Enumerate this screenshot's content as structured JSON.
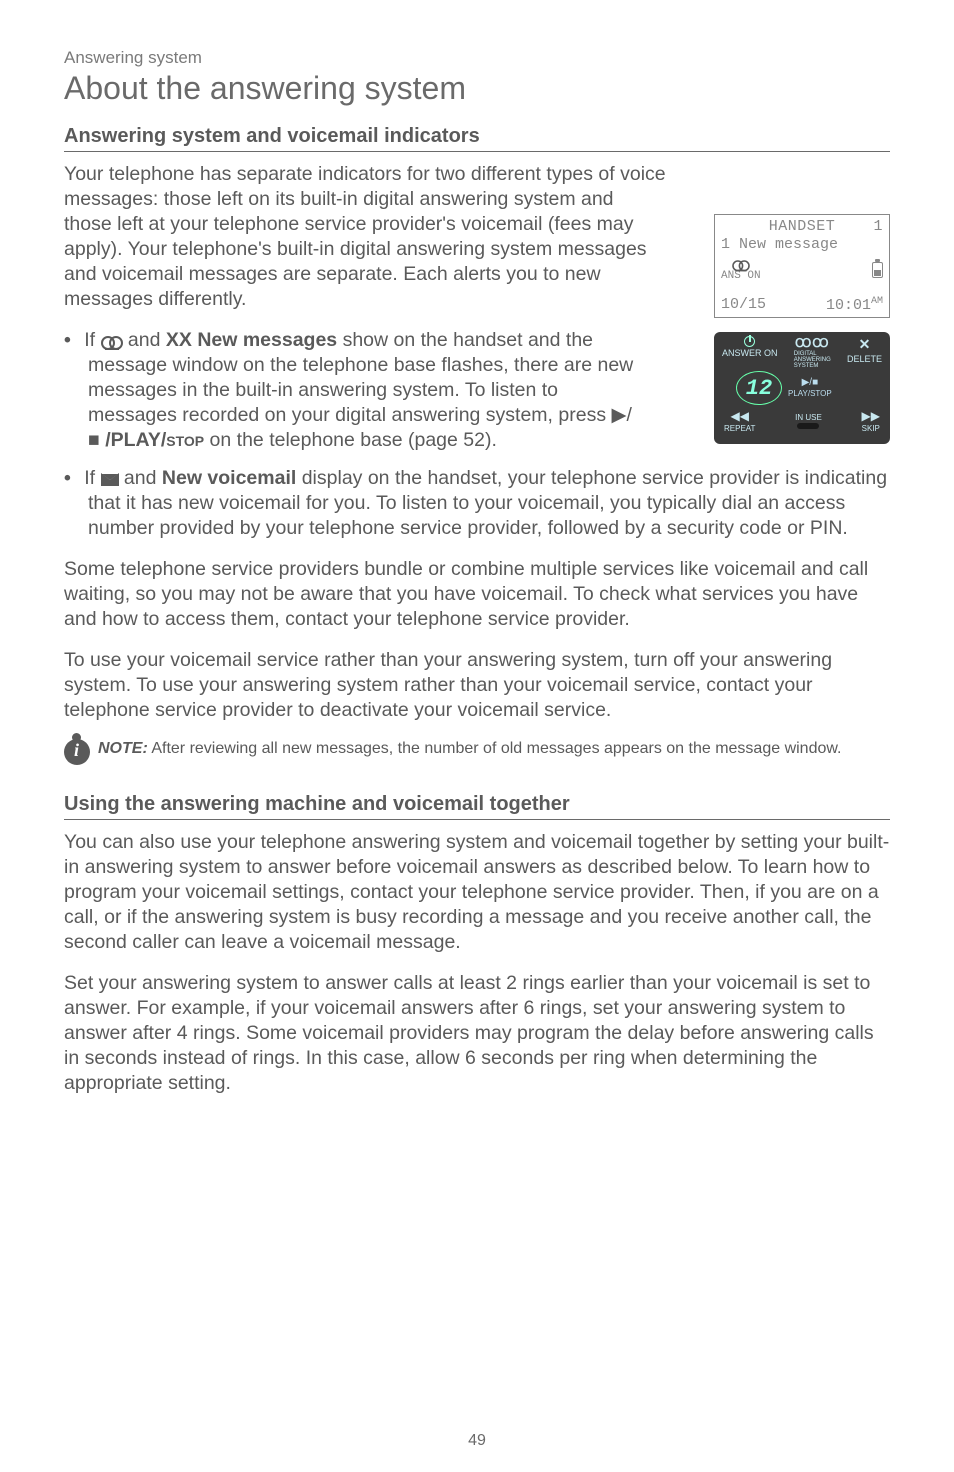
{
  "breadcrumb": "Answering system",
  "title": "About the answering system",
  "section1": {
    "heading": "Answering system and voicemail indicators",
    "intro_line": "Your telephone has separate indicators for two different types of voice",
    "intro_rest": "messages: those left on its built-in digital answering system and those left at your telephone service provider's voicemail (fees may apply). Your telephone's built-in digital answering system messages and voicemail messages are separate. Each alerts you to new messages differently.",
    "bullet1_a": "If ",
    "bullet1_b": " and ",
    "bullet1_bold1": "XX New messages",
    "bullet1_c": " show on the handset and the message window on the telephone base flashes, there are new messages in the built-in answering system. To listen to messages recorded on your digital answering system, press ",
    "bullet1_play": " /PLAY/",
    "bullet1_stop": "stop",
    "bullet1_d": " on the telephone base (page 52).",
    "bullet2_a": "If ",
    "bullet2_b": " and ",
    "bullet2_bold": "New voicemail",
    "bullet2_c": " display on the handset, your telephone service provider is indicating that it has new voicemail for you. To listen to your voicemail, you typically dial an access number provided by your telephone service provider, followed by a security code or PIN.",
    "para2": "Some telephone service providers bundle or combine multiple services like voicemail and call waiting, so you may not be aware that you have voicemail. To check what services you have and how to access them, contact your telephone service provider.",
    "para3": "To use your voicemail service rather than your answering system, turn off your answering system. To use your answering system rather than your voicemail service, contact your telephone service provider to deactivate your voicemail service.",
    "note_label": "NOTE:",
    "note_text": " After reviewing all new messages, the number of old messages appears on the message window."
  },
  "section2": {
    "heading": "Using the answering machine and voicemail together",
    "para1": "You can also use your telephone answering system and voicemail together by setting your built-in answering system to answer before voicemail answers as described below. To learn how to program your voicemail settings, contact your telephone service provider. Then, if you are on a call, or if the answering system is busy recording a message and you receive another call, the second caller can leave a voicemail message.",
    "para2": "Set your answering system to answer calls at least 2 rings earlier than your voicemail is set to answer. For example, if your voicemail answers after 6 rings, set your answering system to answer after 4 rings. Some voicemail providers may program the delay before answering calls in seconds instead of rings. In this case, allow 6 seconds per ring when determining the appropriate setting."
  },
  "lcd": {
    "handset": "HANDSET",
    "handset_num": "1",
    "line2": "1 New message",
    "ans_on": "ANS ON",
    "date": "10/15",
    "time": "10:01",
    "ampm": "AM"
  },
  "basepanel": {
    "answer_on": "ANSWER ON",
    "delete": "DELETE",
    "display": "12",
    "play_stop": "PLAY/STOP",
    "repeat": "REPEAT",
    "in_use": "IN USE",
    "skip": "SKIP",
    "tape_label": "ꝎꝎ"
  },
  "page_number": "49",
  "colors": {
    "text": "#5a5a5a",
    "light": "#7a7a7a",
    "panel_bg": "#3a3a3a",
    "panel_fg": "#c8e8f0"
  }
}
